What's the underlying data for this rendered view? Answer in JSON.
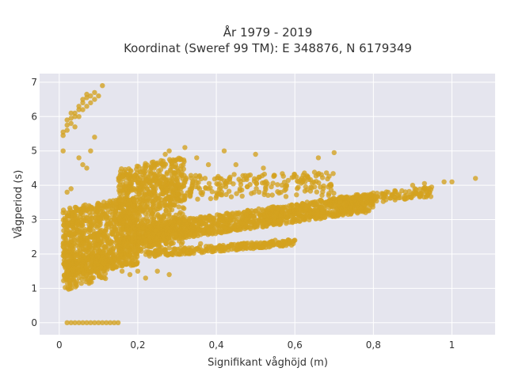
{
  "title_line1": "År 1979 - 2019",
  "title_line2": "Koordinat (Sweref 99 TM): E 348876, N 6179349",
  "chart_data": {
    "type": "scatter",
    "title": "År 1979 - 2019\nKoordinat (Sweref 99 TM): E 348876, N 6179349",
    "xlabel": "Signifikant våghöjd (m)",
    "ylabel": "Vågperiod (s)",
    "xlim": [
      -0.05,
      1.11
    ],
    "ylim": [
      -0.35,
      7.25
    ],
    "xticks": [
      0,
      0.2,
      0.4,
      0.6,
      0.8,
      1
    ],
    "xtick_labels": [
      "0",
      "0,2",
      "0,4",
      "0,6",
      "0,8",
      "1"
    ],
    "yticks": [
      0,
      1,
      2,
      3,
      4,
      5,
      6,
      7
    ],
    "ytick_labels": [
      "0",
      "1",
      "2",
      "3",
      "4",
      "5",
      "6",
      "7"
    ],
    "grid": true,
    "legend": "none",
    "marker_color": "#d4a11f",
    "plot_bg": "#e5e5ee",
    "clusters_description_note": "",
    "points": [
      [
        0.02,
        0.0
      ],
      [
        0.03,
        0.0
      ],
      [
        0.04,
        0.0
      ],
      [
        0.05,
        0.0
      ],
      [
        0.06,
        0.0
      ],
      [
        0.07,
        0.0
      ],
      [
        0.08,
        0.0
      ],
      [
        0.09,
        0.0
      ],
      [
        0.1,
        0.0
      ],
      [
        0.11,
        0.0
      ],
      [
        0.12,
        0.0
      ],
      [
        0.13,
        0.0
      ],
      [
        0.14,
        0.0
      ],
      [
        0.15,
        0.0
      ],
      [
        0.01,
        5.45
      ],
      [
        0.01,
        5.55
      ],
      [
        0.02,
        5.6
      ],
      [
        0.02,
        5.75
      ],
      [
        0.03,
        5.8
      ],
      [
        0.03,
        5.95
      ],
      [
        0.04,
        6.0
      ],
      [
        0.04,
        6.1
      ],
      [
        0.05,
        6.2
      ],
      [
        0.05,
        6.3
      ],
      [
        0.06,
        6.4
      ],
      [
        0.06,
        6.5
      ],
      [
        0.07,
        6.55
      ],
      [
        0.07,
        6.65
      ],
      [
        0.08,
        6.6
      ],
      [
        0.09,
        6.7
      ],
      [
        0.1,
        6.6
      ],
      [
        0.11,
        6.9
      ],
      [
        0.02,
        5.9
      ],
      [
        0.03,
        6.1
      ],
      [
        0.05,
        6.0
      ],
      [
        0.06,
        6.2
      ],
      [
        0.08,
        6.4
      ],
      [
        0.04,
        5.7
      ],
      [
        0.07,
        6.3
      ],
      [
        0.09,
        6.5
      ],
      [
        0.01,
        5.0
      ],
      [
        0.05,
        4.8
      ],
      [
        0.06,
        4.6
      ],
      [
        0.07,
        4.5
      ],
      [
        0.08,
        5.0
      ],
      [
        0.09,
        5.4
      ],
      [
        0.02,
        3.8
      ],
      [
        0.03,
        3.9
      ],
      [
        0.01,
        3.2
      ],
      [
        0.27,
        4.9
      ],
      [
        0.28,
        5.0
      ],
      [
        0.32,
        5.1
      ],
      [
        0.35,
        4.8
      ],
      [
        0.42,
        5.0
      ],
      [
        0.5,
        4.9
      ],
      [
        0.66,
        4.8
      ],
      [
        0.7,
        4.95
      ],
      [
        0.25,
        4.6
      ],
      [
        0.3,
        4.5
      ],
      [
        0.38,
        4.6
      ],
      [
        0.45,
        4.6
      ],
      [
        0.52,
        4.5
      ],
      [
        0.22,
        4.5
      ],
      [
        0.36,
        2.3
      ],
      [
        0.55,
        2.4
      ],
      [
        0.6,
        2.4
      ],
      [
        0.16,
        1.5
      ],
      [
        0.18,
        1.4
      ],
      [
        0.2,
        1.5
      ],
      [
        0.22,
        1.3
      ],
      [
        0.25,
        1.5
      ],
      [
        0.28,
        1.4
      ],
      [
        1.06,
        4.2
      ],
      [
        1.0,
        4.1
      ],
      [
        0.98,
        4.1
      ],
      [
        0.93,
        4.05
      ],
      [
        0.9,
        4.0
      ]
    ]
  }
}
